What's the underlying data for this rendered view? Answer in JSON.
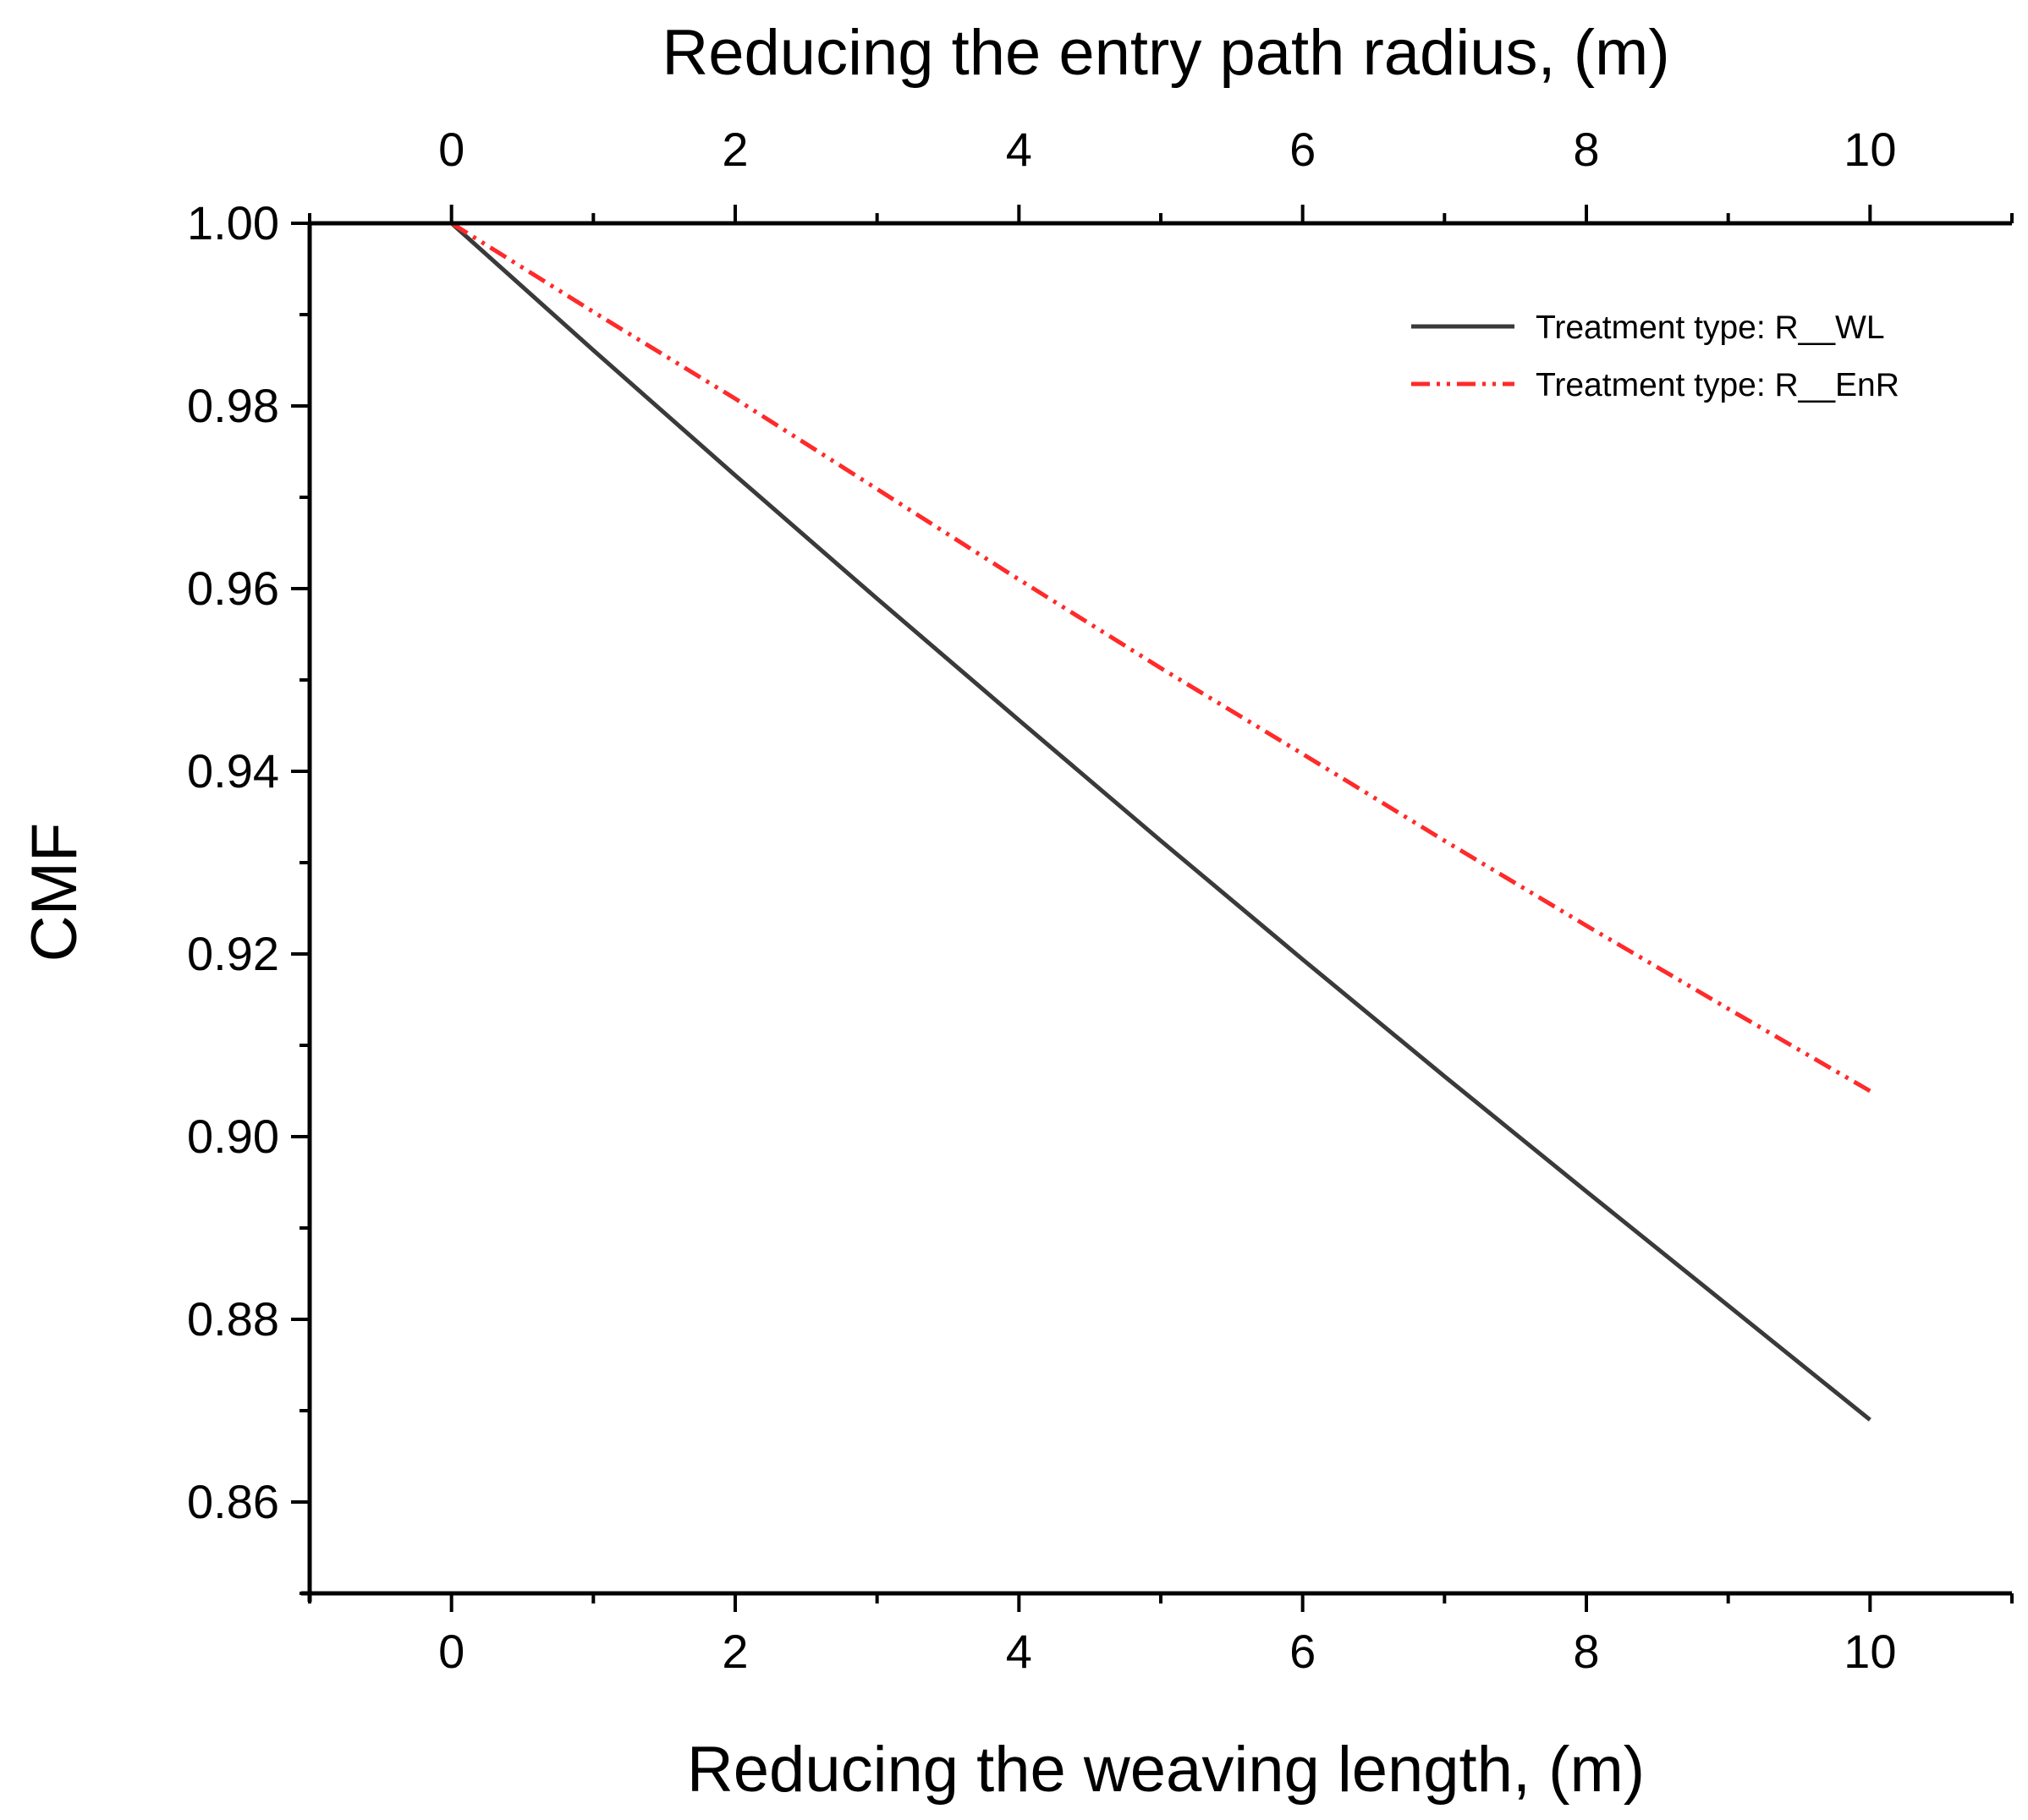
{
  "chart_data": {
    "type": "line",
    "title": "",
    "xlabel": "Reducing the weaving length, (m)",
    "x2label": "Reducing the entry path radius, (m)",
    "ylabel": "CMF",
    "xlim": [
      -1,
      11
    ],
    "ylim": [
      0.85,
      1.0
    ],
    "xticks": [
      0,
      2,
      4,
      6,
      8,
      10
    ],
    "xtick_labels": [
      "0",
      "2",
      "4",
      "6",
      "8",
      "10"
    ],
    "x2ticks": [
      0,
      2,
      4,
      6,
      8,
      10
    ],
    "x2tick_labels": [
      "0",
      "2",
      "4",
      "6",
      "8",
      "10"
    ],
    "yticks": [
      0.86,
      0.88,
      0.9,
      0.92,
      0.94,
      0.96,
      0.98,
      1.0
    ],
    "ytick_labels": [
      "0.86",
      "0.88",
      "0.90",
      "0.92",
      "0.94",
      "0.96",
      "0.98",
      "1.00"
    ],
    "grid": false,
    "legend_position": "top-right",
    "series": [
      {
        "name": "Treatment type: R__WL",
        "color": "#3a3a3a",
        "style": "solid",
        "x": [
          0,
          1,
          2,
          3,
          4,
          5,
          6,
          7,
          8,
          9,
          10
        ],
        "values": [
          1.0,
          0.9861,
          0.9724,
          0.9589,
          0.9456,
          0.9324,
          0.9194,
          0.9066,
          0.894,
          0.8815,
          0.869
        ]
      },
      {
        "name": "Treatment type: R__EnR",
        "color": "#ff2a2a",
        "style": "dash-dot-dot",
        "x": [
          0,
          1,
          2,
          3,
          4,
          5,
          6,
          7,
          8,
          9,
          10
        ],
        "values": [
          1.0,
          0.9903,
          0.9808,
          0.9709,
          0.961,
          0.9513,
          0.9419,
          0.9324,
          0.9231,
          0.914,
          0.905
        ]
      }
    ]
  }
}
